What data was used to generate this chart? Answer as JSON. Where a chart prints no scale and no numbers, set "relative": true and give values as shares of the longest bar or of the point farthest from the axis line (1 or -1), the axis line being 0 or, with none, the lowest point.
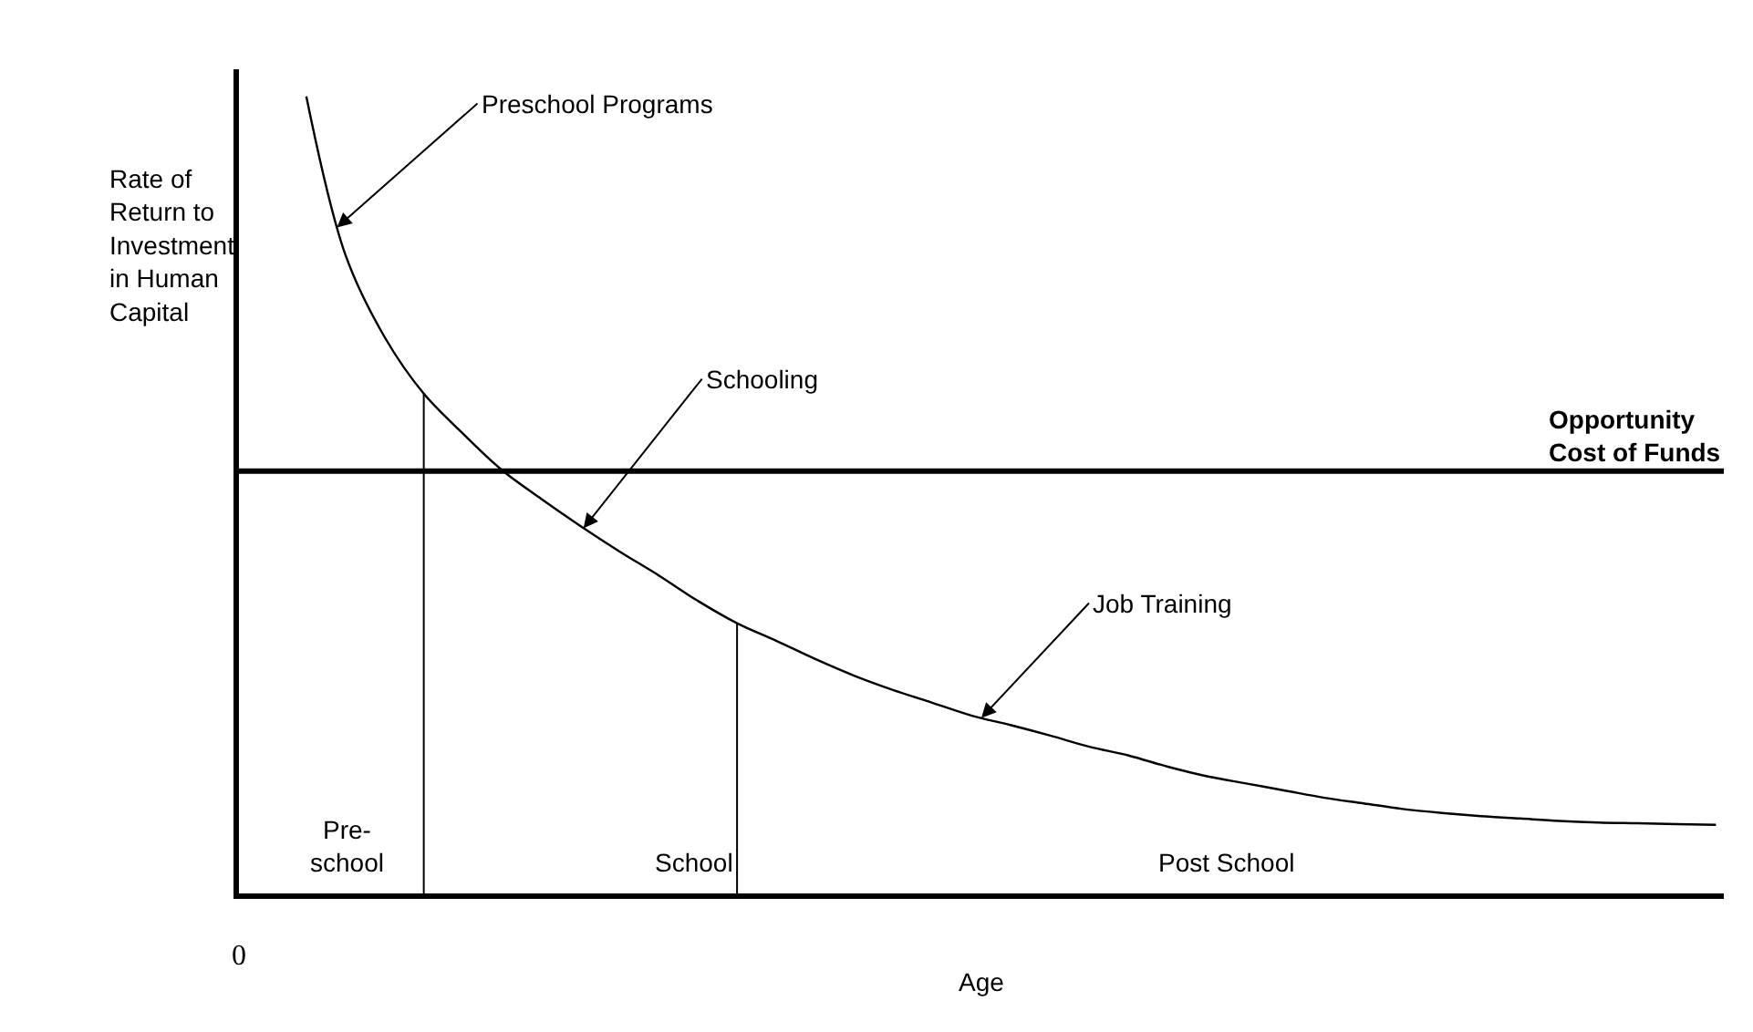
{
  "chart_data": {
    "type": "line",
    "relative": true,
    "xlabel": "Age",
    "ylabel": "Rate of\nReturn to\nInvestment\nin Human\nCapital",
    "categories": [
      null,
      null,
      null,
      null,
      null,
      null,
      null,
      null,
      null,
      null,
      null,
      null,
      null,
      null,
      null,
      null,
      null,
      null,
      null,
      null,
      null,
      null,
      null,
      null,
      null,
      null,
      null,
      null,
      null,
      null,
      null,
      null,
      null,
      null,
      null,
      null,
      null
    ],
    "tick_labels": false,
    "series": [
      {
        "color": "#000000",
        "values": [
          1.0,
          0.801,
          0.698,
          0.627,
          0.577,
          0.531,
          0.495,
          0.461,
          0.429,
          0.399,
          0.367,
          0.339,
          0.317,
          0.294,
          0.273,
          0.255,
          0.239,
          0.223,
          0.211,
          0.198,
          0.184,
          0.173,
          0.159,
          0.147,
          0.138,
          0.129,
          0.12,
          0.113,
          0.106,
          0.101,
          0.097,
          0.094,
          0.091,
          0.089,
          0.088,
          0.087,
          0.086
        ]
      }
    ],
    "ref_lines": [
      {
        "axis": "y",
        "value": 0.53,
        "label": "Opportunity\nCost of Funds",
        "color": "#000000"
      }
    ],
    "annotations": [
      "Preschool Programs",
      "Schooling",
      "Job Training",
      "Pre-\nschool",
      "School",
      "Post School",
      "0"
    ],
    "legend": false,
    "marker": "none",
    "line_style": "solid"
  }
}
